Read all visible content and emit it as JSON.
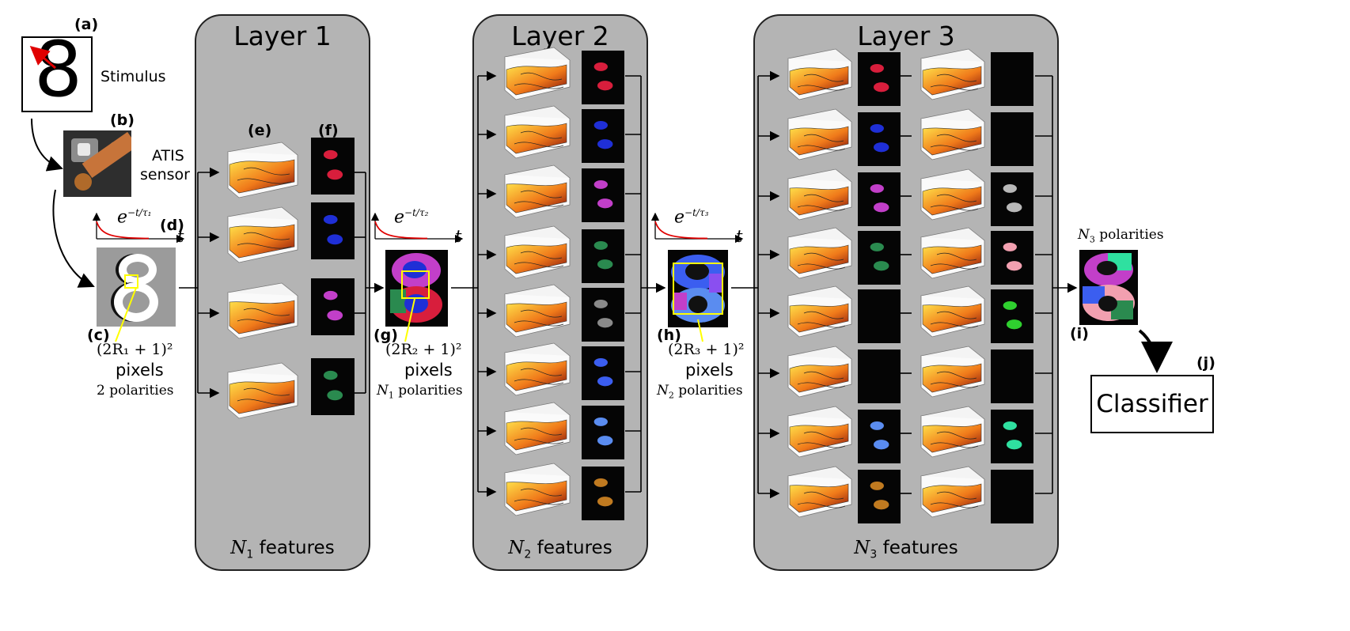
{
  "stimulus": {
    "label_a": "(a)",
    "digit": "8",
    "text": "Stimulus"
  },
  "sensor": {
    "label_b": "(b)",
    "line1": "ATIS",
    "line2": "sensor"
  },
  "input": {
    "label_c": "(c)",
    "label_d": "(d)",
    "size_text": "(2R₁ + 1)²",
    "pixels": "pixels",
    "polarities": "2 polarities"
  },
  "decay": [
    {
      "expr_base": "e",
      "expr_exp": "−t/τ₁",
      "axis": "t"
    },
    {
      "expr_base": "e",
      "expr_exp": "−t/τ₂",
      "axis": "t"
    },
    {
      "expr_base": "e",
      "expr_exp": "−t/τ₃",
      "axis": "t"
    }
  ],
  "layer1": {
    "title": "Layer 1",
    "label_e": "(e)",
    "label_f": "(f)",
    "features_sym": "N",
    "features_sub": "1",
    "features_text": " features",
    "thumb_colors": [
      "#d81e3c",
      "#1f2fd6",
      "#c23fc9",
      "#2a8a4f"
    ]
  },
  "layer2": {
    "title": "Layer 2",
    "features_sym": "N",
    "features_sub": "2",
    "features_text": " features",
    "thumb_colors": [
      "#d81e3c",
      "#1f2fd6",
      "#c23fc9",
      "#2a8a4f",
      "#8a8a8a",
      "#3b5ef0",
      "#5a8cf0",
      "#c07a20"
    ]
  },
  "layer3": {
    "title": "Layer 3",
    "features_sym": "N",
    "features_sub": "3",
    "features_text": " features",
    "thumb_colors_left": [
      "#d81e3c",
      "#1f2fd6",
      "#c23fc9",
      "#2a8a4f",
      "#000000",
      "#000000",
      "#5a8cf0",
      "#c07a20"
    ],
    "thumb_colors_right": [
      "#000000",
      "#000000",
      "#b8b8b8",
      "#f2a0b0",
      "#2fd02f",
      "#000000",
      "#2fe0a0",
      "#000000"
    ]
  },
  "mid_g": {
    "label": "(g)",
    "size_text": "(2R₂ + 1)²",
    "pixels": "pixels",
    "pol_sym": "N",
    "pol_sub": "1",
    "pol_text": " polarities"
  },
  "mid_h": {
    "label": "(h)",
    "size_text": "(2R₃ + 1)²",
    "pixels": "pixels",
    "pol_sym": "N",
    "pol_sub": "2",
    "pol_text": " polarities"
  },
  "output": {
    "label_i": "(i)",
    "pol_sym": "N",
    "pol_sub": "3",
    "pol_text": " polarities"
  },
  "classifier": {
    "label_j": "(j)",
    "text": "Classifier"
  },
  "colors": {
    "panel": "#b4b4b4",
    "highlight": "#ffff00",
    "arrow_red": "#e00000"
  }
}
